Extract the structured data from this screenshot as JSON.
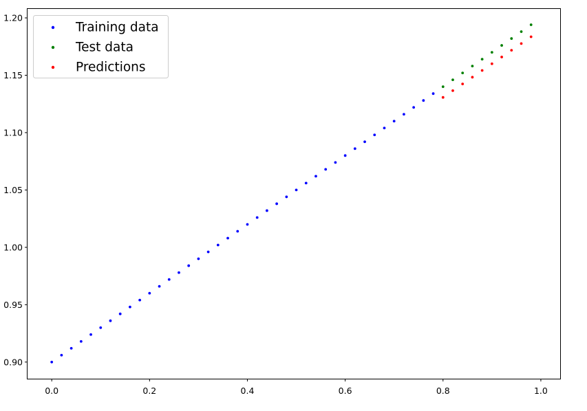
{
  "chart_data": {
    "type": "scatter",
    "title": "",
    "xlabel": "",
    "ylabel": "",
    "xlim": [
      -0.0495,
      1.0395
    ],
    "ylim": [
      0.8855,
      1.2078
    ],
    "x_ticks": [
      0.0,
      0.2,
      0.4,
      0.6,
      0.8,
      1.0
    ],
    "x_tick_labels": [
      "0.0",
      "0.2",
      "0.4",
      "0.6",
      "0.8",
      "1.0"
    ],
    "y_ticks": [
      0.9,
      0.95,
      1.0,
      1.05,
      1.1,
      1.15,
      1.2
    ],
    "y_tick_labels": [
      "0.90",
      "0.95",
      "1.00",
      "1.05",
      "1.10",
      "1.15",
      "1.20"
    ],
    "grid": false,
    "legend_position": "top-left",
    "series": [
      {
        "name": "Training data",
        "color": "#0000ff",
        "x": [
          0.0,
          0.02,
          0.04,
          0.06,
          0.08,
          0.1,
          0.12,
          0.14,
          0.16,
          0.18,
          0.2,
          0.22,
          0.24,
          0.26,
          0.28,
          0.3,
          0.32,
          0.34,
          0.36,
          0.38,
          0.4,
          0.42,
          0.44,
          0.46,
          0.48,
          0.5,
          0.52,
          0.54,
          0.56,
          0.58,
          0.6,
          0.62,
          0.64,
          0.66,
          0.68,
          0.7,
          0.72,
          0.74,
          0.76,
          0.78
        ],
        "y": [
          0.9,
          0.906,
          0.912,
          0.918,
          0.924,
          0.93,
          0.936,
          0.942,
          0.948,
          0.954,
          0.96,
          0.966,
          0.972,
          0.978,
          0.984,
          0.99,
          0.996,
          1.002,
          1.008,
          1.014,
          1.02,
          1.026,
          1.032,
          1.038,
          1.044,
          1.05,
          1.056,
          1.062,
          1.068,
          1.074,
          1.08,
          1.086,
          1.092,
          1.098,
          1.104,
          1.11,
          1.116,
          1.122,
          1.128,
          1.134
        ]
      },
      {
        "name": "Test data",
        "color": "#008000",
        "x": [
          0.8,
          0.82,
          0.84,
          0.86,
          0.88,
          0.9,
          0.92,
          0.94,
          0.96,
          0.98
        ],
        "y": [
          1.14,
          1.146,
          1.152,
          1.158,
          1.164,
          1.17,
          1.176,
          1.182,
          1.188,
          1.194
        ]
      },
      {
        "name": "Predictions",
        "color": "#ff0000",
        "x": [
          0.8,
          0.82,
          0.84,
          0.86,
          0.88,
          0.9,
          0.92,
          0.94,
          0.96,
          0.98
        ],
        "y": [
          1.1307,
          1.1366,
          1.1424,
          1.1483,
          1.1542,
          1.16,
          1.1659,
          1.1718,
          1.1776,
          1.1835
        ]
      }
    ]
  }
}
